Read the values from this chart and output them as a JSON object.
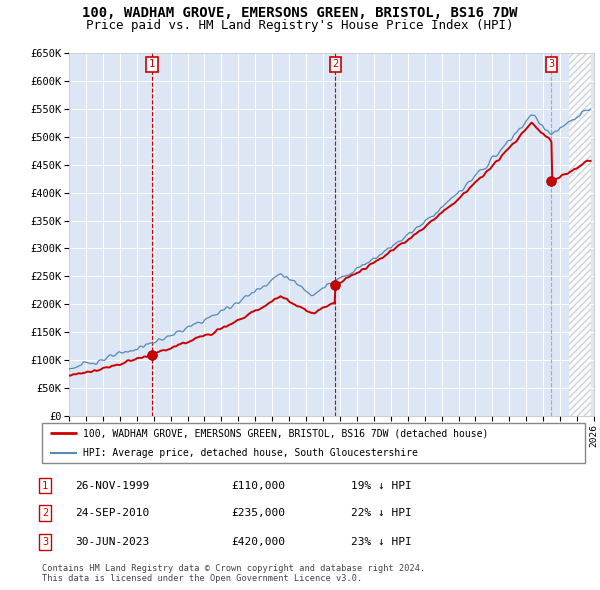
{
  "title": "100, WADHAM GROVE, EMERSONS GREEN, BRISTOL, BS16 7DW",
  "subtitle": "Price paid vs. HM Land Registry's House Price Index (HPI)",
  "title_fontsize": 10,
  "subtitle_fontsize": 9,
  "background_color": "#ffffff",
  "plot_bg_color": "#dce6f5",
  "grid_color": "#ffffff",
  "xmin": 1995,
  "xmax": 2026,
  "ymin": 0,
  "ymax": 650000,
  "yticks": [
    0,
    50000,
    100000,
    150000,
    200000,
    250000,
    300000,
    350000,
    400000,
    450000,
    500000,
    550000,
    600000,
    650000
  ],
  "ytick_labels": [
    "£0",
    "£50K",
    "£100K",
    "£150K",
    "£200K",
    "£250K",
    "£300K",
    "£350K",
    "£400K",
    "£450K",
    "£500K",
    "£550K",
    "£600K",
    "£650K"
  ],
  "sale_dates_num": [
    1999.9,
    2010.73,
    2023.49
  ],
  "sale_prices": [
    110000,
    235000,
    420000
  ],
  "sale_labels": [
    "1",
    "2",
    "3"
  ],
  "vline_colors": [
    "#cc0000",
    "#cc0000",
    "#aaaaaa"
  ],
  "sale_dot_color": "#cc0000",
  "hpi_line_color": "#5588bb",
  "property_line_color": "#cc0000",
  "legend_items": [
    "100, WADHAM GROVE, EMERSONS GREEN, BRISTOL, BS16 7DW (detached house)",
    "HPI: Average price, detached house, South Gloucestershire"
  ],
  "table_rows": [
    [
      "1",
      "26-NOV-1999",
      "£110,000",
      "19% ↓ HPI"
    ],
    [
      "2",
      "24-SEP-2010",
      "£235,000",
      "22% ↓ HPI"
    ],
    [
      "3",
      "30-JUN-2023",
      "£420,000",
      "23% ↓ HPI"
    ]
  ],
  "footnote": "Contains HM Land Registry data © Crown copyright and database right 2024.\nThis data is licensed under the Open Government Licence v3.0."
}
